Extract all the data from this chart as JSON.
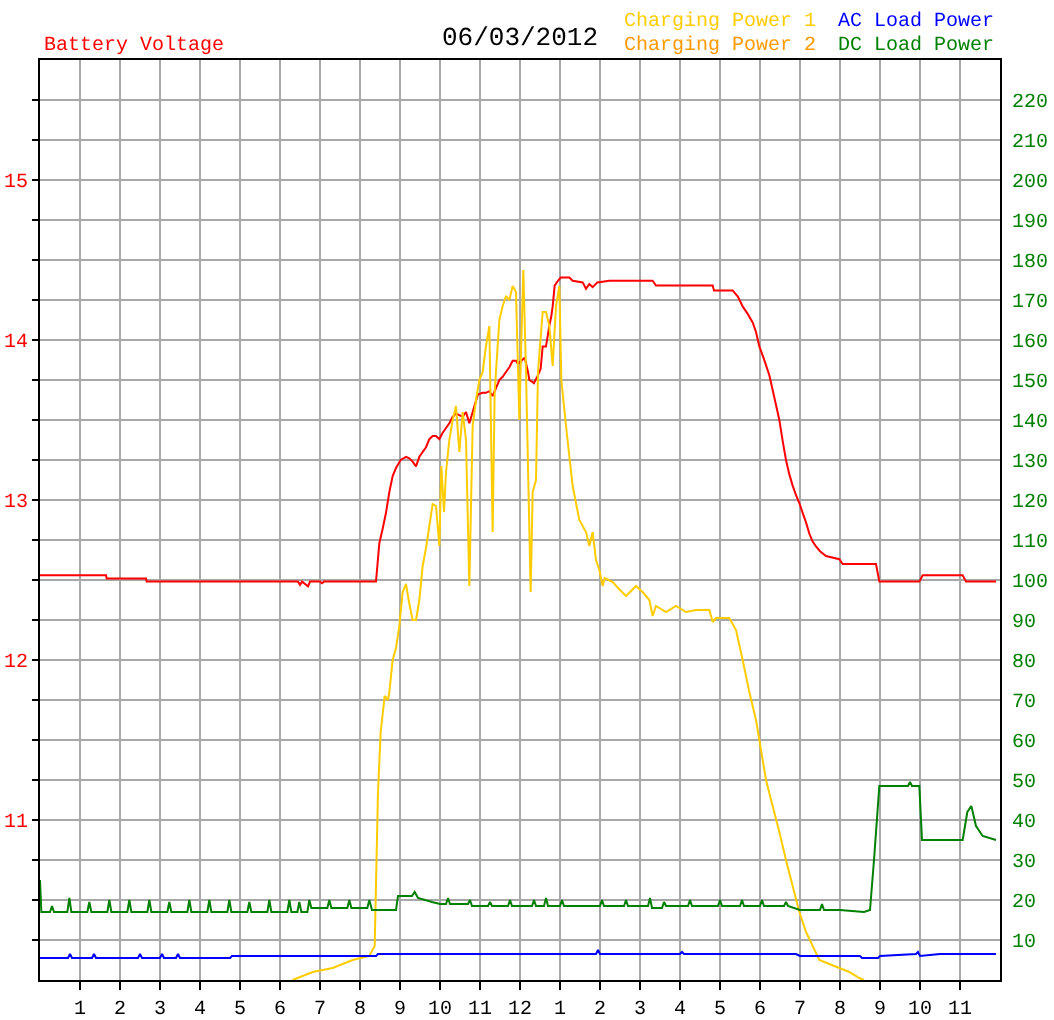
{
  "chart_data": {
    "type": "line",
    "title": "06/03/2012",
    "ylabel": "Battery Voltage",
    "legend": "top right",
    "grid": true,
    "xlim": [
      "2012-06-03T00:00",
      "2012-06-04T00:00"
    ],
    "xticks": [
      {
        "value": "2012-06-03T01:00",
        "label": "1"
      },
      {
        "value": "2012-06-03T02:00",
        "label": "2"
      },
      {
        "value": "2012-06-03T03:00",
        "label": "3"
      },
      {
        "value": "2012-06-03T04:00",
        "label": "4"
      },
      {
        "value": "2012-06-03T05:00",
        "label": "5"
      },
      {
        "value": "2012-06-03T06:00",
        "label": "6"
      },
      {
        "value": "2012-06-03T07:00",
        "label": "7"
      },
      {
        "value": "2012-06-03T08:00",
        "label": "8"
      },
      {
        "value": "2012-06-03T09:00",
        "label": "9"
      },
      {
        "value": "2012-06-03T10:00",
        "label": "10"
      },
      {
        "value": "2012-06-03T11:00",
        "label": "11"
      },
      {
        "value": "2012-06-03T12:00",
        "label": "12"
      },
      {
        "value": "2012-06-03T13:00",
        "label": "1"
      },
      {
        "value": "2012-06-03T14:00",
        "label": "2"
      },
      {
        "value": "2012-06-03T15:00",
        "label": "3"
      },
      {
        "value": "2012-06-03T16:00",
        "label": "4"
      },
      {
        "value": "2012-06-03T17:00",
        "label": "5"
      },
      {
        "value": "2012-06-03T18:00",
        "label": "6"
      },
      {
        "value": "2012-06-03T19:00",
        "label": "7"
      },
      {
        "value": "2012-06-03T20:00",
        "label": "8"
      },
      {
        "value": "2012-06-03T21:00",
        "label": "9"
      },
      {
        "value": "2012-06-03T22:00",
        "label": "10"
      },
      {
        "value": "2012-06-03T23:00",
        "label": "11"
      }
    ],
    "ylim": [
      10,
      15.75
    ],
    "yticks": [
      {
        "value": 10.25,
        "label": null
      },
      {
        "value": 10.5,
        "label": null
      },
      {
        "value": 10.75,
        "label": null
      },
      11,
      {
        "value": 11.25,
        "label": null
      },
      {
        "value": 11.5,
        "label": null
      },
      {
        "value": 11.75,
        "label": null
      },
      12,
      {
        "value": 12.25,
        "label": null
      },
      {
        "value": 12.5,
        "label": null
      },
      {
        "value": 12.75,
        "label": null
      },
      13,
      {
        "value": 13.25,
        "label": null
      },
      {
        "value": 13.5,
        "label": null
      },
      {
        "value": 13.75,
        "label": null
      },
      14,
      {
        "value": 14.25,
        "label": null
      },
      {
        "value": 14.5,
        "label": null
      },
      {
        "value": 14.75,
        "label": null
      },
      15,
      {
        "value": 15.25,
        "label": null
      },
      {
        "value": 15.5,
        "label": null
      }
    ],
    "y2lim": [
      0,
      230
    ],
    "y2ticks": [
      10,
      20,
      30,
      40,
      50,
      60,
      70,
      80,
      90,
      100,
      110,
      120,
      130,
      140,
      150,
      160,
      170,
      180,
      190,
      200,
      210,
      220
    ],
    "series": [
      {
        "color": "#ff0000",
        "x": [
          "2012-06-03T00:00",
          "2012-06-03T01:39",
          "2012-06-03T01:40",
          "2012-06-03T02:39",
          "2012-06-03T02:40",
          "2012-06-03T06:27",
          "2012-06-03T06:30",
          "2012-06-03T06:33",
          "2012-06-03T06:39",
          "2012-06-03T06:42",
          "2012-06-03T06:45",
          "2012-06-03T07:00",
          "2012-06-03T07:03",
          "2012-06-03T07:06",
          "2012-06-03T08:24",
          "2012-06-03T08:29",
          "2012-06-03T08:34",
          "2012-06-03T08:39",
          "2012-06-03T08:44",
          "2012-06-03T08:49",
          "2012-06-03T08:54",
          "2012-06-03T09:01",
          "2012-06-03T09:09",
          "2012-06-03T09:14",
          "2012-06-03T09:19",
          "2012-06-03T09:24",
          "2012-06-03T09:29",
          "2012-06-03T09:34",
          "2012-06-03T09:39",
          "2012-06-03T09:44",
          "2012-06-03T09:49",
          "2012-06-03T09:54",
          "2012-06-03T09:59",
          "2012-06-03T10:04",
          "2012-06-03T10:09",
          "2012-06-03T10:14",
          "2012-06-03T10:19",
          "2012-06-03T10:24",
          "2012-06-03T10:29",
          "2012-06-03T10:34",
          "2012-06-03T10:39",
          "2012-06-03T10:44",
          "2012-06-03T10:49",
          "2012-06-03T10:54",
          "2012-06-03T10:57",
          "2012-06-03T11:04",
          "2012-06-03T11:09",
          "2012-06-03T11:14",
          "2012-06-03T11:19",
          "2012-06-03T11:24",
          "2012-06-03T11:29",
          "2012-06-03T11:34",
          "2012-06-03T11:39",
          "2012-06-03T11:44",
          "2012-06-03T11:49",
          "2012-06-03T11:54",
          "2012-06-03T11:57",
          "2012-06-03T12:02",
          "2012-06-03T12:07",
          "2012-06-03T12:12",
          "2012-06-03T12:14",
          "2012-06-03T12:18",
          "2012-06-03T12:21",
          "2012-06-03T12:27",
          "2012-06-03T12:31",
          "2012-06-03T12:34",
          "2012-06-03T12:39",
          "2012-06-03T12:44",
          "2012-06-03T12:47",
          "2012-06-03T12:49",
          "2012-06-03T12:52",
          "2012-06-03T12:57",
          "2012-06-03T13:01",
          "2012-06-03T13:14",
          "2012-06-03T13:19",
          "2012-06-03T13:34",
          "2012-06-03T13:39",
          "2012-06-03T13:44",
          "2012-06-03T13:49",
          "2012-06-03T13:56",
          "2012-06-03T14:14",
          "2012-06-03T15:19",
          "2012-06-03T15:24",
          "2012-06-03T16:49",
          "2012-06-03T16:51",
          "2012-06-03T17:19",
          "2012-06-03T17:27",
          "2012-06-03T17:34",
          "2012-06-03T17:42",
          "2012-06-03T17:49",
          "2012-06-03T17:54",
          "2012-06-03T17:59",
          "2012-06-03T18:06",
          "2012-06-03T18:14",
          "2012-06-03T18:21",
          "2012-06-03T18:29",
          "2012-06-03T18:34",
          "2012-06-03T18:39",
          "2012-06-03T18:44",
          "2012-06-03T18:49",
          "2012-06-03T18:54",
          "2012-06-03T18:59",
          "2012-06-03T19:04",
          "2012-06-03T19:09",
          "2012-06-03T19:14",
          "2012-06-03T19:19",
          "2012-06-03T19:24",
          "2012-06-03T19:30",
          "2012-06-03T19:39",
          "2012-06-03T19:59",
          "2012-06-03T20:04",
          "2012-06-03T20:54",
          "2012-06-03T20:59",
          "2012-06-03T21:59",
          "2012-06-03T22:04",
          "2012-06-03T23:04",
          "2012-06-03T23:09",
          "2012-06-03T23:54"
        ],
        "values": [
          12.53,
          12.53,
          12.51,
          12.51,
          12.49,
          12.49,
          12.47,
          12.49,
          12.47,
          12.46,
          12.49,
          12.49,
          12.48,
          12.49,
          12.49,
          12.73,
          12.82,
          12.92,
          13.05,
          13.15,
          13.2,
          13.25,
          13.27,
          13.26,
          13.24,
          13.21,
          13.27,
          13.3,
          13.33,
          13.38,
          13.4,
          13.4,
          13.38,
          13.42,
          13.45,
          13.48,
          13.52,
          13.54,
          13.53,
          13.52,
          13.55,
          13.48,
          13.55,
          13.62,
          13.66,
          13.67,
          13.67,
          13.68,
          13.65,
          13.7,
          13.75,
          13.77,
          13.8,
          13.83,
          13.87,
          13.87,
          13.85,
          13.87,
          13.89,
          13.8,
          13.75,
          13.74,
          13.73,
          13.78,
          13.82,
          13.96,
          13.96,
          14.09,
          14.15,
          14.21,
          14.34,
          14.37,
          14.39,
          14.39,
          14.37,
          14.36,
          14.32,
          14.35,
          14.33,
          14.36,
          14.37,
          14.37,
          14.34,
          14.34,
          14.31,
          14.31,
          14.27,
          14.21,
          14.16,
          14.11,
          14.05,
          13.96,
          13.88,
          13.78,
          13.65,
          13.5,
          13.37,
          13.25,
          13.16,
          13.09,
          13.03,
          12.98,
          12.92,
          12.86,
          12.79,
          12.74,
          12.71,
          12.68,
          12.65,
          12.63,
          12.6,
          12.6,
          12.49,
          12.49,
          12.53,
          12.53,
          12.49,
          12.49
        ]
      },
      {
        "name": "Charging Power 1",
        "color": "#ffcc00",
        "axis": "y2",
        "x": [
          "2012-06-03T06:19",
          "2012-06-03T06:49",
          "2012-06-03T07:19",
          "2012-06-03T07:49",
          "2012-06-03T08:14",
          "2012-06-03T08:22",
          "2012-06-03T08:27",
          "2012-06-03T08:31",
          "2012-06-03T08:37",
          "2012-06-03T08:42",
          "2012-06-03T08:44",
          "2012-06-03T08:49",
          "2012-06-03T08:54",
          "2012-06-03T08:59",
          "2012-06-03T09:04",
          "2012-06-03T09:09",
          "2012-06-03T09:14",
          "2012-06-03T09:19",
          "2012-06-03T09:24",
          "2012-06-03T09:29",
          "2012-06-03T09:34",
          "2012-06-03T09:39",
          "2012-06-03T09:44",
          "2012-06-03T09:49",
          "2012-06-03T09:54",
          "2012-06-03T09:59",
          "2012-06-03T10:02",
          "2012-06-03T10:06",
          "2012-06-03T10:09",
          "2012-06-03T10:14",
          "2012-06-03T10:19",
          "2012-06-03T10:24",
          "2012-06-03T10:29",
          "2012-06-03T10:34",
          "2012-06-03T10:39",
          "2012-06-03T10:44",
          "2012-06-03T10:49",
          "2012-06-03T10:54",
          "2012-06-03T10:59",
          "2012-06-03T11:04",
          "2012-06-03T11:09",
          "2012-06-03T11:14",
          "2012-06-03T11:19",
          "2012-06-03T11:22",
          "2012-06-03T11:29",
          "2012-06-03T11:34",
          "2012-06-03T11:39",
          "2012-06-03T11:44",
          "2012-06-03T11:49",
          "2012-06-03T11:54",
          "2012-06-03T11:59",
          "2012-06-03T12:02",
          "2012-06-03T12:05",
          "2012-06-03T12:09",
          "2012-06-03T12:16",
          "2012-06-03T12:19",
          "2012-06-03T12:24",
          "2012-06-03T12:27",
          "2012-06-03T12:34",
          "2012-06-03T12:39",
          "2012-06-03T12:44",
          "2012-06-03T12:49",
          "2012-06-03T12:54",
          "2012-06-03T12:59",
          "2012-06-03T13:02",
          "2012-06-03T13:09",
          "2012-06-03T13:19",
          "2012-06-03T13:29",
          "2012-06-03T13:39",
          "2012-06-03T13:44",
          "2012-06-03T13:49",
          "2012-06-03T13:54",
          "2012-06-03T13:59",
          "2012-06-03T14:04",
          "2012-06-03T14:07",
          "2012-06-03T14:19",
          "2012-06-03T14:30",
          "2012-06-03T14:39",
          "2012-06-03T14:54",
          "2012-06-03T15:04",
          "2012-06-03T15:14",
          "2012-06-03T15:19",
          "2012-06-03T15:24",
          "2012-06-03T15:39",
          "2012-06-03T15:54",
          "2012-06-03T16:09",
          "2012-06-03T16:24",
          "2012-06-03T16:44",
          "2012-06-03T16:49",
          "2012-06-03T16:54",
          "2012-06-03T17:14",
          "2012-06-03T17:24",
          "2012-06-03T17:34",
          "2012-06-03T17:44",
          "2012-06-03T17:54",
          "2012-06-03T17:59",
          "2012-06-03T18:09",
          "2012-06-03T18:19",
          "2012-06-03T18:29",
          "2012-06-03T18:39",
          "2012-06-03T18:49",
          "2012-06-03T18:59",
          "2012-06-03T19:09",
          "2012-06-03T19:19",
          "2012-06-03T19:29",
          "2012-06-03T19:44",
          "2012-06-03T19:59",
          "2012-06-03T20:14",
          "2012-06-03T20:29",
          "2012-06-03T20:36"
        ],
        "values": [
          0,
          2,
          3,
          5,
          6,
          8.5,
          47,
          62,
          71,
          70,
          72,
          80,
          83,
          88.5,
          97,
          99,
          94,
          90,
          90,
          95,
          103.5,
          108,
          113.5,
          119,
          118.5,
          108.5,
          128.5,
          117,
          127,
          135,
          140,
          143.5,
          132,
          142,
          135,
          98.5,
          138.5,
          145,
          150,
          152,
          158.5,
          163.5,
          112,
          147,
          165,
          168.5,
          171,
          170,
          173.5,
          172,
          140,
          160,
          177.5,
          152,
          97,
          122,
          125,
          152,
          167,
          167,
          163.5,
          153.5,
          168.5,
          173.5,
          150,
          138.5,
          123.5,
          115,
          112,
          108.5,
          112,
          105,
          102.5,
          98.5,
          100.5,
          99.5,
          97.5,
          96,
          98.5,
          97,
          95,
          91,
          93.5,
          92,
          93.5,
          92,
          92.5,
          92.5,
          89.5,
          90.5,
          90.5,
          87.5,
          80,
          72,
          65,
          60,
          50,
          43.5,
          37,
          30,
          23.5,
          17,
          12,
          8.5,
          5,
          4,
          3,
          2,
          0.5,
          0
        ]
      },
      {
        "name": "Charging Power 2",
        "color": "#ff9900"
      },
      {
        "name": "AC Load Power",
        "color": "#0000ff",
        "axis": "y2",
        "x": [
          "2012-06-03T00:00",
          "2012-06-03T00:42",
          "2012-06-03T00:45",
          "2012-06-03T00:48",
          "2012-06-03T01:18",
          "2012-06-03T01:21",
          "2012-06-03T01:24",
          "2012-06-03T02:27",
          "2012-06-03T02:30",
          "2012-06-03T02:33",
          "2012-06-03T03:00",
          "2012-06-03T03:03",
          "2012-06-03T03:06",
          "2012-06-03T03:24",
          "2012-06-03T03:27",
          "2012-06-03T03:30",
          "2012-06-03T04:45",
          "2012-06-03T04:48",
          "2012-06-03T08:24",
          "2012-06-03T08:27",
          "2012-06-03T13:54",
          "2012-06-03T13:57",
          "2012-06-03T14:00",
          "2012-06-03T16:00",
          "2012-06-03T16:03",
          "2012-06-03T16:06",
          "2012-06-03T18:54",
          "2012-06-03T19:00",
          "2012-06-03T20:30",
          "2012-06-03T20:33",
          "2012-06-03T20:57",
          "2012-06-03T21:00",
          "2012-06-03T21:54",
          "2012-06-03T21:57",
          "2012-06-03T22:00",
          "2012-06-03T22:30",
          "2012-06-03T23:54"
        ],
        "values": [
          5.5,
          5.5,
          6.5,
          5.5,
          5.5,
          6.5,
          5.5,
          5.5,
          6.5,
          5.5,
          5.5,
          6.5,
          5.5,
          5.5,
          6.5,
          5.5,
          5.5,
          6,
          6,
          6.5,
          6.5,
          7.5,
          6.5,
          6.5,
          7,
          6.5,
          6.5,
          6,
          6,
          5.5,
          5.5,
          6,
          6.5,
          7,
          6,
          6.5,
          6.5
        ]
      },
      {
        "name": "DC Load Power",
        "color": "#008000",
        "axis": "y2",
        "x": [
          "2012-06-03T00:00",
          "2012-06-03T00:02",
          "2012-06-03T00:15",
          "2012-06-03T00:18",
          "2012-06-03T00:21",
          "2012-06-03T00:41",
          "2012-06-03T00:44",
          "2012-06-03T00:47",
          "2012-06-03T01:11",
          "2012-06-03T01:14",
          "2012-06-03T01:17",
          "2012-06-03T01:41",
          "2012-06-03T01:44",
          "2012-06-03T01:47",
          "2012-06-03T02:11",
          "2012-06-03T02:14",
          "2012-06-03T02:17",
          "2012-06-03T02:41",
          "2012-06-03T02:44",
          "2012-06-03T02:47",
          "2012-06-03T03:11",
          "2012-06-03T03:14",
          "2012-06-03T03:17",
          "2012-06-03T03:41",
          "2012-06-03T03:44",
          "2012-06-03T03:47",
          "2012-06-03T04:11",
          "2012-06-03T04:14",
          "2012-06-03T04:17",
          "2012-06-03T04:41",
          "2012-06-03T04:44",
          "2012-06-03T04:47",
          "2012-06-03T05:11",
          "2012-06-03T05:14",
          "2012-06-03T05:17",
          "2012-06-03T05:41",
          "2012-06-03T05:44",
          "2012-06-03T05:47",
          "2012-06-03T06:11",
          "2012-06-03T06:14",
          "2012-06-03T06:17",
          "2012-06-03T06:26",
          "2012-06-03T06:29",
          "2012-06-03T06:32",
          "2012-06-03T06:41",
          "2012-06-03T06:44",
          "2012-06-03T06:47",
          "2012-06-03T07:11",
          "2012-06-03T07:14",
          "2012-06-03T07:17",
          "2012-06-03T07:41",
          "2012-06-03T07:44",
          "2012-06-03T07:47",
          "2012-06-03T08:11",
          "2012-06-03T08:14",
          "2012-06-03T08:18",
          "2012-06-03T08:54",
          "2012-06-03T08:57",
          "2012-06-03T09:18",
          "2012-06-03T09:22",
          "2012-06-03T09:27",
          "2012-06-03T09:48",
          "2012-06-03T10:00",
          "2012-06-03T10:09",
          "2012-06-03T10:12",
          "2012-06-03T10:15",
          "2012-06-03T10:42",
          "2012-06-03T10:45",
          "2012-06-03T10:48",
          "2012-06-03T11:12",
          "2012-06-03T11:15",
          "2012-06-03T11:18",
          "2012-06-03T11:42",
          "2012-06-03T11:45",
          "2012-06-03T11:48",
          "2012-06-03T12:18",
          "2012-06-03T12:21",
          "2012-06-03T12:24",
          "2012-06-03T12:36",
          "2012-06-03T12:39",
          "2012-06-03T12:42",
          "2012-06-03T13:00",
          "2012-06-03T13:03",
          "2012-06-03T13:06",
          "2012-06-03T14:00",
          "2012-06-03T14:03",
          "2012-06-03T14:06",
          "2012-06-03T14:36",
          "2012-06-03T14:39",
          "2012-06-03T14:42",
          "2012-06-03T15:12",
          "2012-06-03T15:15",
          "2012-06-03T15:18",
          "2012-06-03T15:33",
          "2012-06-03T15:36",
          "2012-06-03T15:39",
          "2012-06-03T16:12",
          "2012-06-03T16:15",
          "2012-06-03T16:18",
          "2012-06-03T16:57",
          "2012-06-03T17:00",
          "2012-06-03T17:03",
          "2012-06-03T17:30",
          "2012-06-03T17:33",
          "2012-06-03T17:36",
          "2012-06-03T18:00",
          "2012-06-03T18:03",
          "2012-06-03T18:06",
          "2012-06-03T18:36",
          "2012-06-03T18:39",
          "2012-06-03T18:42",
          "2012-06-03T19:00",
          "2012-06-03T19:30",
          "2012-06-03T19:33",
          "2012-06-03T19:36",
          "2012-06-03T20:00",
          "2012-06-03T20:36",
          "2012-06-03T20:45",
          "2012-06-03T20:51",
          "2012-06-03T20:59",
          "2012-06-03T21:42",
          "2012-06-03T21:45",
          "2012-06-03T21:48",
          "2012-06-03T21:59",
          "2012-06-03T22:03",
          "2012-06-03T23:04",
          "2012-06-03T23:11",
          "2012-06-03T23:17",
          "2012-06-03T23:24",
          "2012-06-03T23:34",
          "2012-06-03T23:54"
        ],
        "values": [
          25,
          17,
          17,
          18.5,
          17,
          17,
          20.5,
          17,
          17,
          19.5,
          17,
          17,
          20,
          17,
          17,
          20,
          17,
          17,
          20,
          17,
          17,
          19.5,
          17,
          17,
          20,
          17,
          17,
          20,
          17,
          17,
          20,
          17,
          17,
          19.5,
          17,
          17,
          20,
          17,
          17,
          20,
          17,
          17,
          19.5,
          17,
          17,
          20,
          18,
          18,
          20,
          18,
          18,
          20,
          18,
          18,
          20,
          17.5,
          17.5,
          21,
          21,
          22,
          20.5,
          19.5,
          19,
          19,
          20.5,
          19,
          19,
          20,
          18.5,
          18.5,
          19.5,
          18.5,
          18.5,
          20,
          18.5,
          18.5,
          20,
          18.5,
          18.5,
          20.5,
          18.5,
          18.5,
          20,
          18.5,
          18.5,
          20,
          18.5,
          18.5,
          20,
          18.5,
          18.5,
          20.5,
          18,
          18,
          19.5,
          18.5,
          18.5,
          20,
          18.5,
          18.5,
          20,
          18.5,
          18.5,
          20,
          18.5,
          18.5,
          20,
          18.5,
          18.5,
          19.5,
          18.5,
          17.5,
          17.5,
          19,
          17.5,
          17.5,
          17,
          17.5,
          30,
          48.5,
          48.5,
          49.5,
          48.5,
          48.5,
          35,
          35,
          42,
          43.5,
          38.5,
          36,
          35
        ]
      }
    ]
  }
}
